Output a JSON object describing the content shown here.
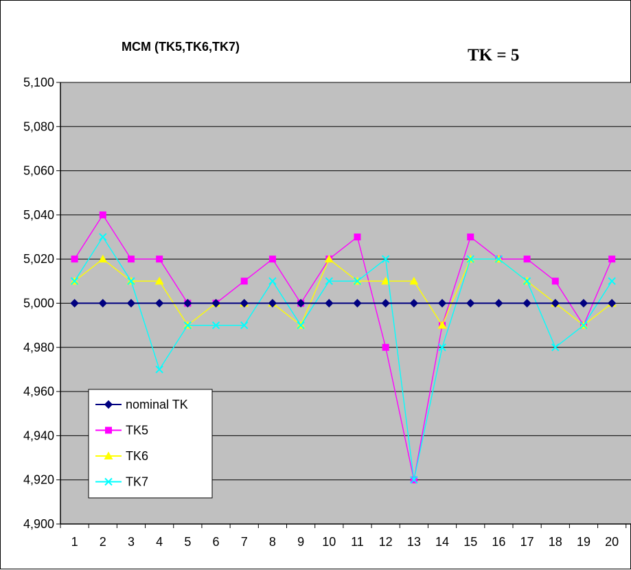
{
  "chart_data": {
    "type": "line",
    "title": "MCM (TK5,TK6,TK7)",
    "annotation": "TK = 5",
    "xlabel": "",
    "ylabel": "",
    "categories": [
      "1",
      "2",
      "3",
      "4",
      "5",
      "6",
      "7",
      "8",
      "9",
      "10",
      "11",
      "12",
      "13",
      "14",
      "15",
      "16",
      "17",
      "18",
      "19",
      "20"
    ],
    "ylim": [
      4.9,
      5.1
    ],
    "yticks": [
      4.9,
      4.92,
      4.94,
      4.96,
      4.98,
      5.0,
      5.02,
      5.04,
      5.06,
      5.08,
      5.1
    ],
    "ytick_labels": [
      "4,900",
      "4,920",
      "4,940",
      "4,960",
      "4,980",
      "5,000",
      "5,020",
      "5,040",
      "5,060",
      "5,080",
      "5,100"
    ],
    "grid": "horizontal",
    "plot_background": "#c0c0c0",
    "legend_position": "bottom-left",
    "series": [
      {
        "name": "nominal TK",
        "color": "#000080",
        "marker": "diamond",
        "values": [
          5.0,
          5.0,
          5.0,
          5.0,
          5.0,
          5.0,
          5.0,
          5.0,
          5.0,
          5.0,
          5.0,
          5.0,
          5.0,
          5.0,
          5.0,
          5.0,
          5.0,
          5.0,
          5.0,
          5.0
        ]
      },
      {
        "name": "TK5",
        "color": "#ff00ff",
        "marker": "square",
        "values": [
          5.02,
          5.04,
          5.02,
          5.02,
          5.0,
          5.0,
          5.01,
          5.02,
          5.0,
          5.02,
          5.03,
          4.98,
          4.92,
          4.99,
          5.03,
          5.02,
          5.02,
          5.01,
          4.99,
          5.02
        ]
      },
      {
        "name": "TK6",
        "color": "#ffff00",
        "marker": "triangle",
        "values": [
          5.01,
          5.02,
          5.01,
          5.01,
          4.99,
          5.0,
          5.0,
          5.0,
          4.99,
          5.02,
          5.01,
          5.01,
          5.01,
          4.99,
          5.02,
          5.02,
          5.01,
          5.0,
          4.99,
          5.0
        ]
      },
      {
        "name": "TK7",
        "color": "#00ffff",
        "marker": "x",
        "values": [
          5.01,
          5.03,
          5.01,
          4.97,
          4.99,
          4.99,
          4.99,
          5.01,
          4.99,
          5.01,
          5.01,
          5.02,
          4.92,
          4.98,
          5.02,
          5.02,
          5.01,
          4.98,
          4.99,
          5.01
        ]
      }
    ]
  }
}
